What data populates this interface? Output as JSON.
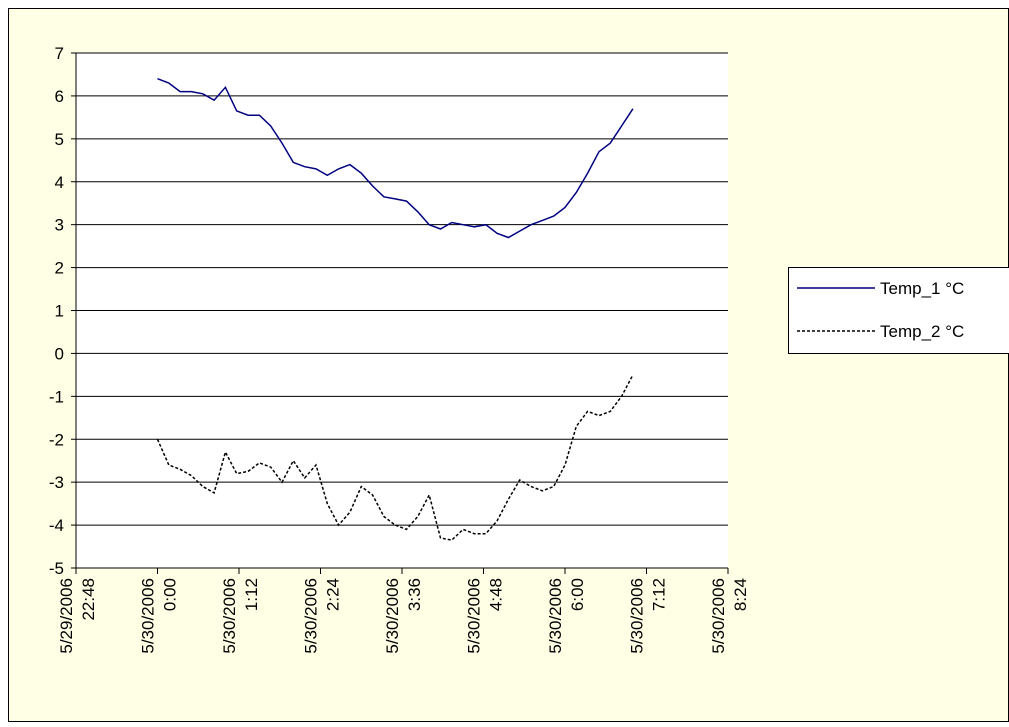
{
  "chart_data": {
    "type": "line",
    "x": [
      "5/30/2006 0:00",
      "5/30/2006 0:10",
      "5/30/2006 0:20",
      "5/30/2006 0:30",
      "5/30/2006 0:40",
      "5/30/2006 0:50",
      "5/30/2006 1:00",
      "5/30/2006 1:10",
      "5/30/2006 1:20",
      "5/30/2006 1:30",
      "5/30/2006 1:40",
      "5/30/2006 1:50",
      "5/30/2006 2:00",
      "5/30/2006 2:10",
      "5/30/2006 2:20",
      "5/30/2006 2:30",
      "5/30/2006 2:40",
      "5/30/2006 2:50",
      "5/30/2006 3:00",
      "5/30/2006 3:10",
      "5/30/2006 3:20",
      "5/30/2006 3:30",
      "5/30/2006 3:40",
      "5/30/2006 3:50",
      "5/30/2006 4:00",
      "5/30/2006 4:10",
      "5/30/2006 4:20",
      "5/30/2006 4:30",
      "5/30/2006 4:40",
      "5/30/2006 4:50",
      "5/30/2006 5:00",
      "5/30/2006 5:10",
      "5/30/2006 5:20",
      "5/30/2006 5:30",
      "5/30/2006 5:40",
      "5/30/2006 5:50",
      "5/30/2006 6:00",
      "5/30/2006 6:10",
      "5/30/2006 6:20",
      "5/30/2006 6:30",
      "5/30/2006 6:40",
      "5/30/2006 6:50",
      "5/30/2006 7:00"
    ],
    "series": [
      {
        "name": "Temp_1 °C",
        "color": "#000080",
        "dash": false,
        "values": [
          6.4,
          6.3,
          6.1,
          6.1,
          6.05,
          5.9,
          6.2,
          5.65,
          5.55,
          5.55,
          5.3,
          4.9,
          4.45,
          4.35,
          4.3,
          4.15,
          4.3,
          4.4,
          4.2,
          3.9,
          3.65,
          3.6,
          3.55,
          3.3,
          3.0,
          2.9,
          3.05,
          3.0,
          2.95,
          3.0,
          2.8,
          2.7,
          2.85,
          3.0,
          3.1,
          3.2,
          3.4,
          3.75,
          4.2,
          4.7,
          4.9,
          5.3,
          5.7
        ]
      },
      {
        "name": "Temp_2 °C",
        "color": "#000000",
        "dash": true,
        "values": [
          -2.0,
          -2.6,
          -2.7,
          -2.85,
          -3.1,
          -3.25,
          -2.3,
          -2.8,
          -2.75,
          -2.55,
          -2.65,
          -3.0,
          -2.5,
          -2.9,
          -2.6,
          -3.5,
          -4.0,
          -3.7,
          -3.1,
          -3.3,
          -3.8,
          -4.0,
          -4.1,
          -3.8,
          -3.3,
          -4.3,
          -4.35,
          -4.1,
          -4.2,
          -4.2,
          -3.9,
          -3.4,
          -2.95,
          -3.1,
          -3.2,
          -3.1,
          -2.6,
          -1.7,
          -1.35,
          -1.45,
          -1.35,
          -1.0,
          -0.5
        ]
      }
    ],
    "xlim": [
      "5/29/2006 22:48",
      "5/30/2006 8:24"
    ],
    "xticks": [
      "5/29/2006 22:48",
      "5/30/2006 0:00",
      "5/30/2006 1:12",
      "5/30/2006 2:24",
      "5/30/2006 3:36",
      "5/30/2006 4:48",
      "5/30/2006 6:00",
      "5/30/2006 7:12",
      "5/30/2006 8:24"
    ],
    "ylim": [
      -5,
      7
    ],
    "yticks": [
      -5,
      -4,
      -3,
      -2,
      -1,
      0,
      1,
      2,
      3,
      4,
      5,
      6,
      7
    ],
    "grid": true,
    "legend": "right"
  }
}
